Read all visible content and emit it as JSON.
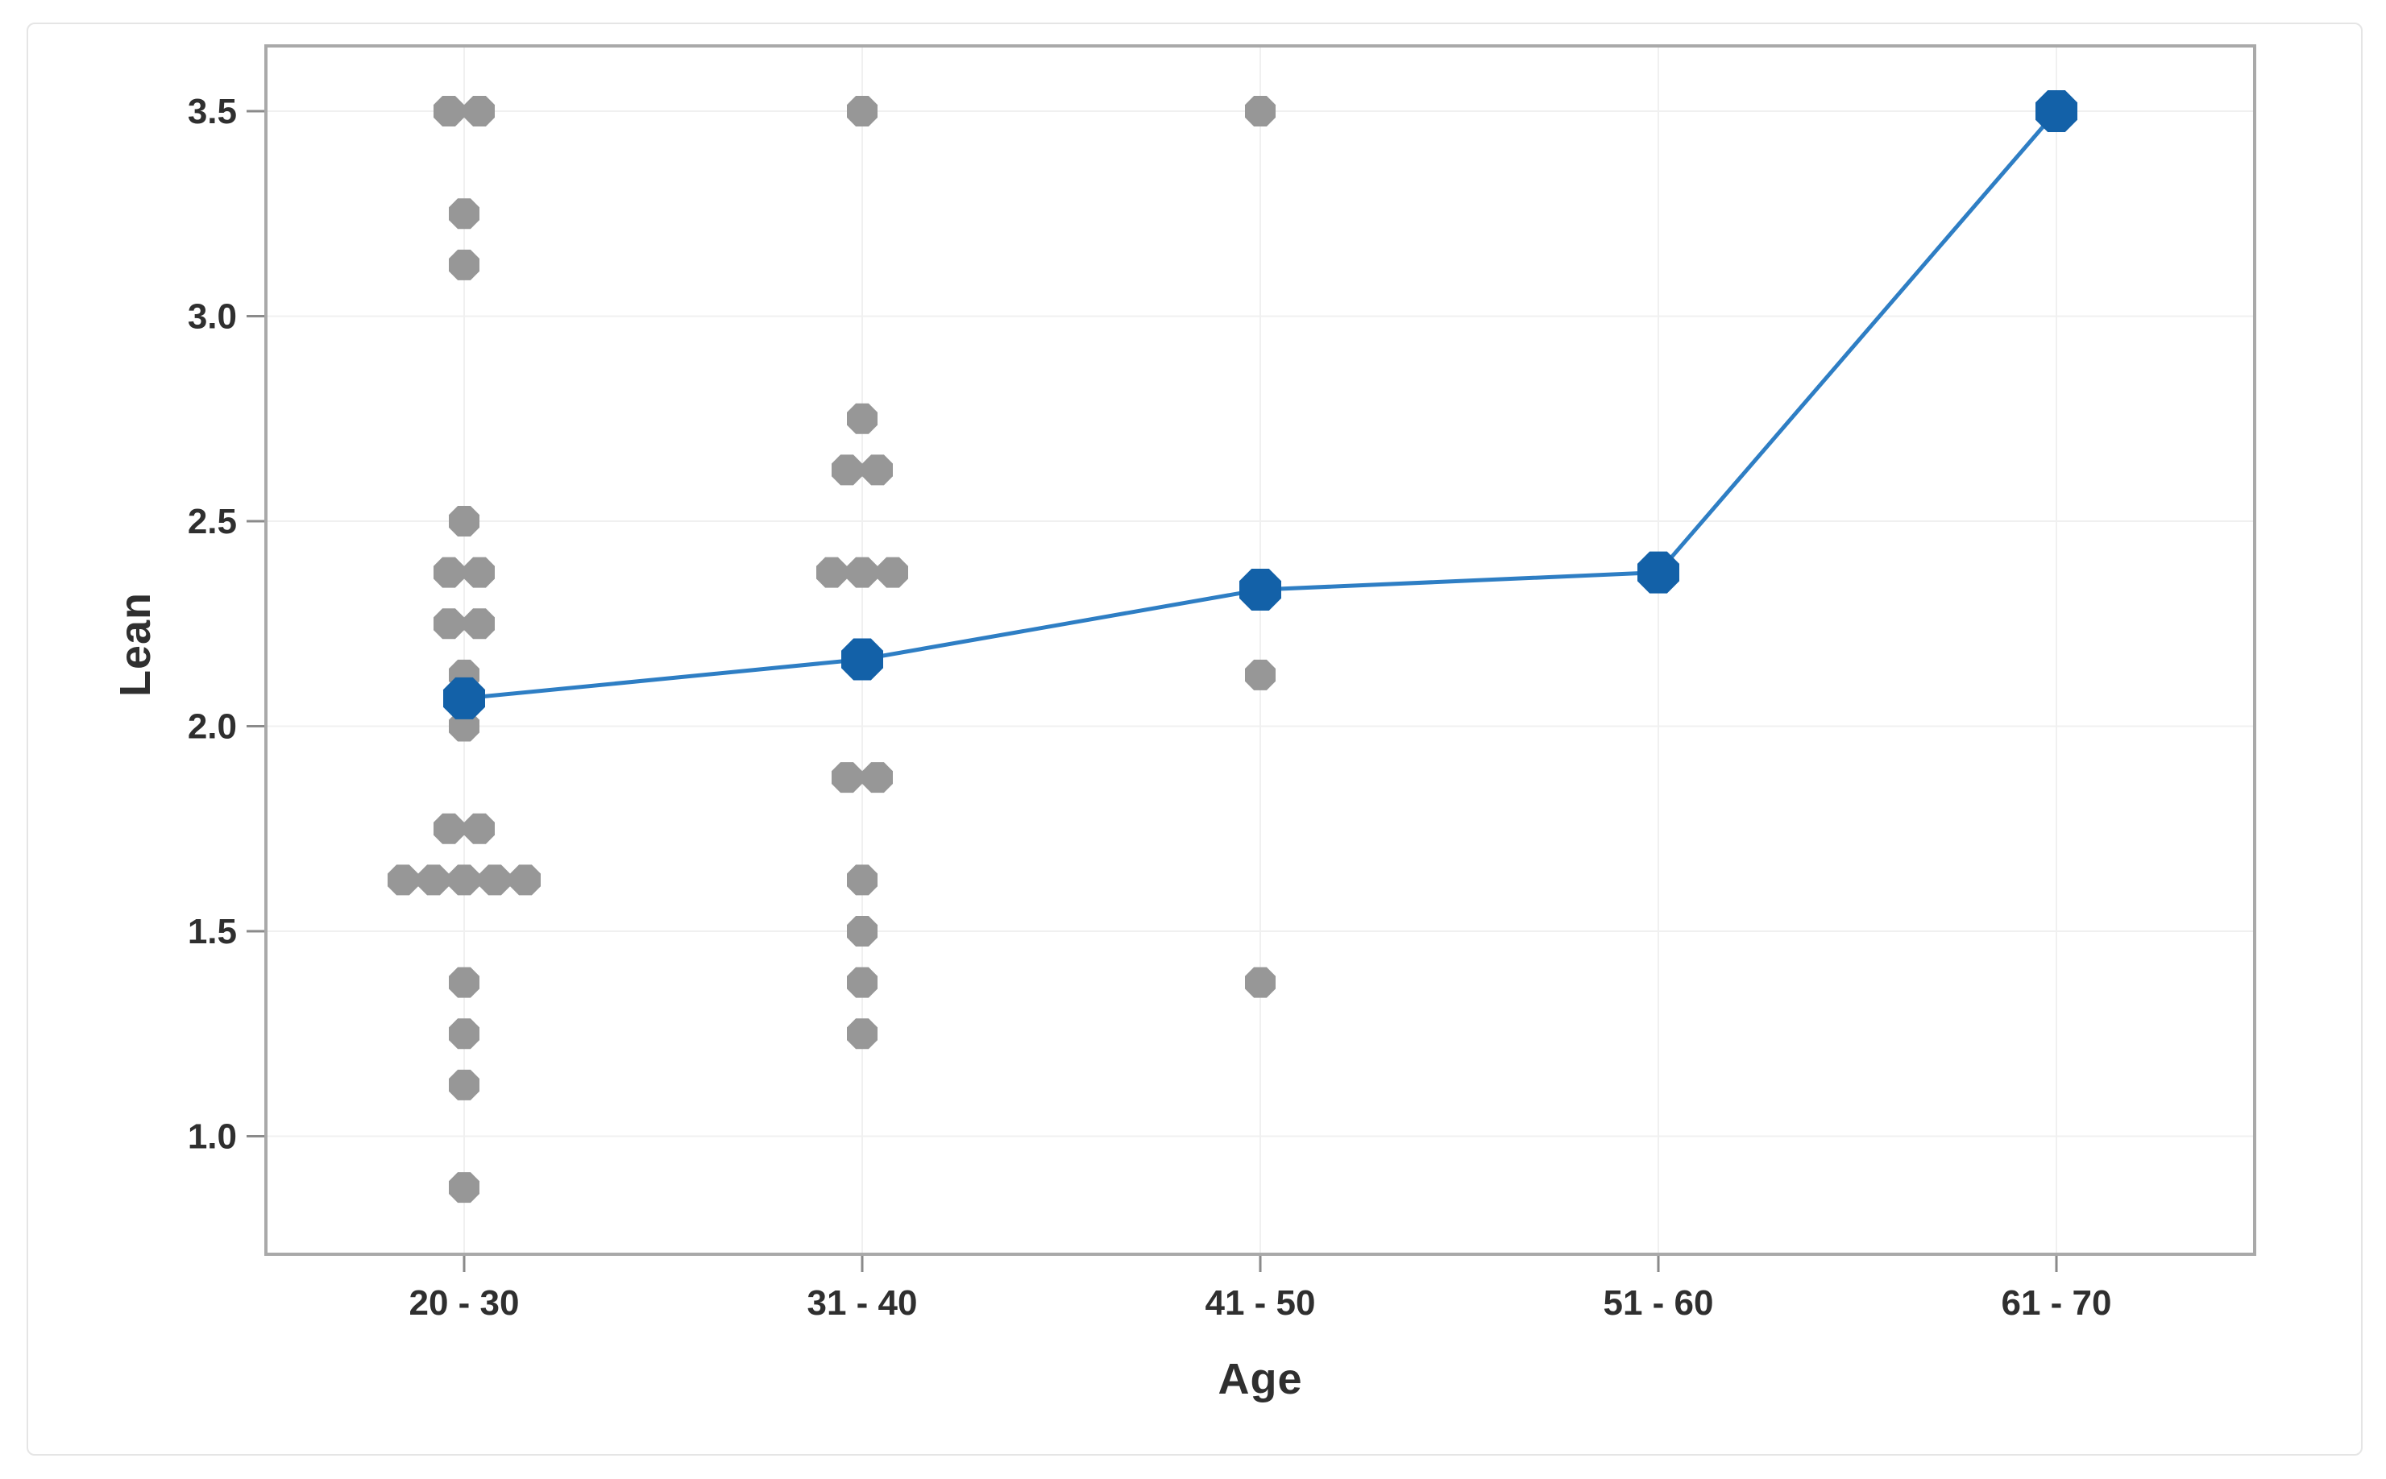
{
  "chart_data": {
    "type": "scatter",
    "subtype": "individual-value-plot-with-connected-means",
    "title": "",
    "xlabel": "Age",
    "ylabel": "Lean",
    "categories": [
      "20 - 30",
      "31 - 40",
      "41 - 50",
      "51 - 60",
      "61 - 70"
    ],
    "y_axis": {
      "min": 0.71,
      "max": 3.66,
      "ticks": [
        3.5,
        3.0,
        2.5,
        2.0,
        1.5,
        1.0
      ],
      "tick_labels": [
        "3.5",
        "3.0",
        "2.5",
        "2.0",
        "1.5",
        "1.0"
      ]
    },
    "grid": true,
    "legend": false,
    "colors": {
      "individual_point": "#979797",
      "mean_point": "#1361a8",
      "mean_line": "#2e7ec4",
      "frame": "#a9a9a9",
      "gridline": "#f0f0f0",
      "tick": "#8a8a8a",
      "tick_label": "#2f2f2f",
      "background": "#ffffff"
    },
    "marker_shape": "octagon",
    "series": [
      {
        "name": "individual-values",
        "groups": [
          {
            "category": "20 - 30",
            "values": [
              3.5,
              3.5,
              3.25,
              3.125,
              2.5,
              2.375,
              2.375,
              2.25,
              2.25,
              2.125,
              2.0,
              1.75,
              1.75,
              1.625,
              1.625,
              1.625,
              1.625,
              1.625,
              1.375,
              1.25,
              1.125,
              0.875
            ]
          },
          {
            "category": "31 - 40",
            "values": [
              3.5,
              2.75,
              2.625,
              2.625,
              2.375,
              2.375,
              2.375,
              1.875,
              1.875,
              1.625,
              1.5,
              1.375,
              1.25
            ]
          },
          {
            "category": "41 - 50",
            "values": [
              3.5,
              2.125,
              1.375
            ]
          },
          {
            "category": "51 - 60",
            "values": [
              2.375
            ]
          },
          {
            "category": "61 - 70",
            "values": [
              3.5
            ]
          }
        ]
      },
      {
        "name": "group-means",
        "values": [
          2.068,
          2.163,
          2.333,
          2.375,
          3.5
        ]
      }
    ]
  }
}
